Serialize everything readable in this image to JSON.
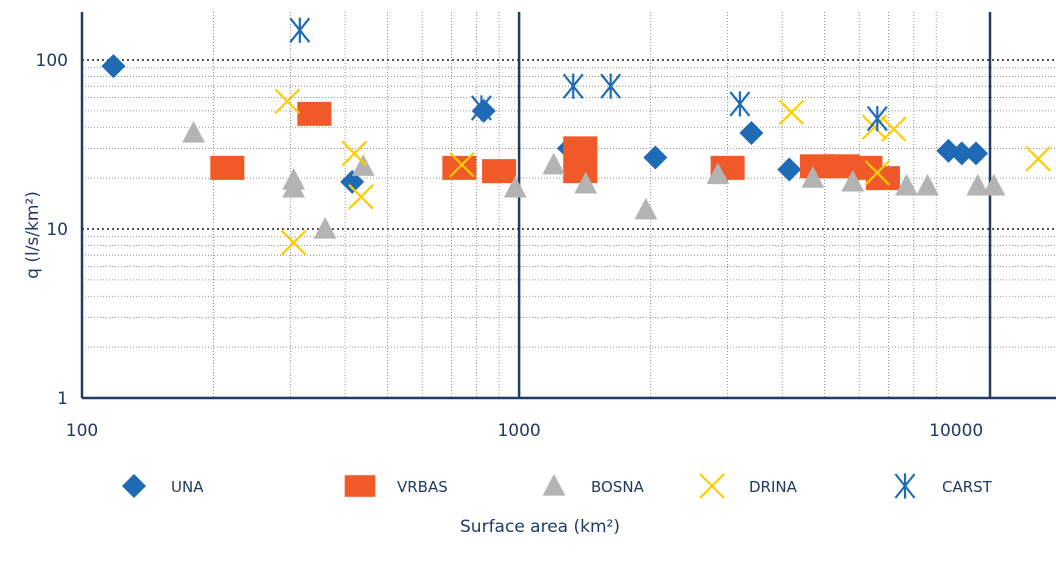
{
  "chart_data": {
    "type": "scatter",
    "title": "",
    "xlabel": "Surface area (km²)",
    "ylabel": "q (l/s/km²)",
    "x_scale": "log",
    "y_scale": "log",
    "xlim": [
      100,
      15500
    ],
    "ylim": [
      1,
      360
    ],
    "x_ticks": [
      {
        "value": 100,
        "label": "100"
      },
      {
        "value": 1000,
        "label": "1000"
      },
      {
        "value": 10000,
        "label": "10000"
      }
    ],
    "y_ticks": [
      {
        "value": 1,
        "label": "1"
      },
      {
        "value": 10,
        "label": "10"
      },
      {
        "value": 100,
        "label": "100"
      }
    ],
    "grid": true,
    "legend_position": "bottom",
    "series": [
      {
        "name": "UNA",
        "marker": "diamond",
        "color": "#1f6ab5",
        "points": [
          [
            118,
            92
          ],
          [
            415,
            19
          ],
          [
            830,
            50
          ],
          [
            1300,
            30
          ],
          [
            2050,
            26.5
          ],
          [
            3400,
            37
          ],
          [
            4150,
            22.5
          ],
          [
            9600,
            29
          ],
          [
            10300,
            28
          ],
          [
            11100,
            28
          ]
        ]
      },
      {
        "name": "VRBAS",
        "marker": "square",
        "color": "#f05a28",
        "points": [
          [
            215,
            23
          ],
          [
            340,
            48
          ],
          [
            730,
            23
          ],
          [
            900,
            22
          ],
          [
            1380,
            22
          ],
          [
            1380,
            30
          ],
          [
            3000,
            23
          ],
          [
            4800,
            23.5
          ],
          [
            5500,
            23.5
          ],
          [
            6200,
            23
          ],
          [
            6800,
            20
          ]
        ]
      },
      {
        "name": "BOSNA",
        "marker": "triangle",
        "color": "#b3b3b3",
        "points": [
          [
            180,
            37
          ],
          [
            305,
            19.5
          ],
          [
            305,
            17.5
          ],
          [
            360,
            10
          ],
          [
            440,
            23.5
          ],
          [
            980,
            17.5
          ],
          [
            1200,
            24
          ],
          [
            1420,
            18.5
          ],
          [
            1950,
            13
          ],
          [
            2850,
            21
          ],
          [
            4700,
            20
          ],
          [
            5800,
            19
          ],
          [
            7700,
            18
          ],
          [
            8600,
            18
          ],
          [
            11200,
            18
          ],
          [
            12200,
            18
          ]
        ]
      },
      {
        "name": "DRINA",
        "marker": "x",
        "color": "#ffcc00",
        "points": [
          [
            295,
            57
          ],
          [
            305,
            8.3
          ],
          [
            420,
            28
          ],
          [
            435,
            15.5
          ],
          [
            740,
            24
          ],
          [
            4200,
            49
          ],
          [
            6500,
            40
          ],
          [
            6600,
            21.5
          ],
          [
            7200,
            39
          ],
          [
            15400,
            26
          ]
        ]
      },
      {
        "name": "CARST",
        "marker": "asterisk",
        "color": "#1f6ab5",
        "points": [
          [
            315,
            150
          ],
          [
            820,
            52
          ],
          [
            1330,
            70
          ],
          [
            1620,
            70
          ],
          [
            3200,
            55
          ],
          [
            6600,
            45
          ]
        ]
      }
    ]
  }
}
